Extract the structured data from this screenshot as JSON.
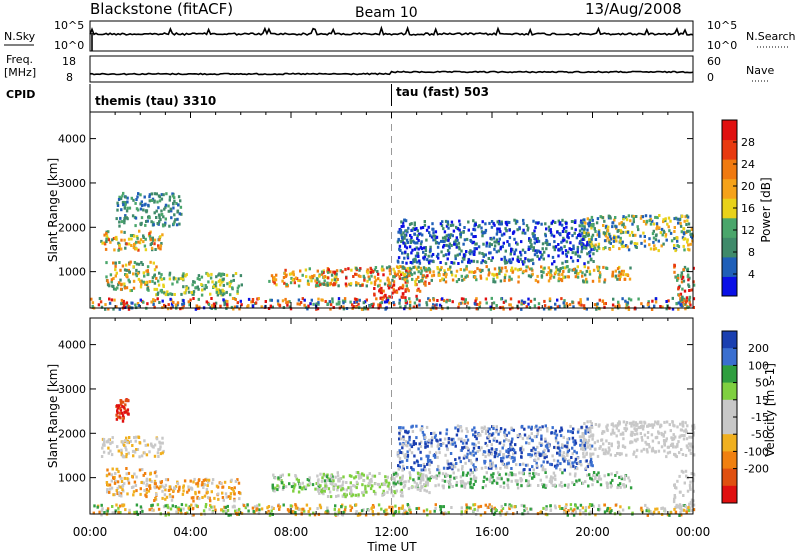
{
  "header": {
    "station": "Blackstone (fitACF)",
    "beam": "Beam 10",
    "date": "13/Aug/2008"
  },
  "top_strips": {
    "nsky_label": "N.Sky",
    "nsky_ticks": [
      "10^5",
      "10^0"
    ],
    "nsearch_label": "N.Search",
    "nsearch_ticks": [
      "10^5",
      "10^0"
    ],
    "freq_label_line1": "Freq.",
    "freq_label_line2": "[MHz]",
    "freq_ticks": [
      "18",
      "8"
    ],
    "nave_label": "Nave",
    "nave_ticks": [
      "60",
      "0"
    ],
    "cpid_label": "CPID",
    "cpid_segments": [
      {
        "label": "themis (tau) 3310",
        "start_hour": 0
      },
      {
        "label": "tau (fast) 503",
        "start_hour": 12
      }
    ]
  },
  "colors": {
    "power_scale": [
      "#0a10e6",
      "#1f5fb8",
      "#3f8a6a",
      "#4aa66b",
      "#e8d21a",
      "#f5a21a",
      "#f07a10",
      "#e83a10",
      "#e01010"
    ],
    "velocity_scale": [
      "#1a3fb0",
      "#3a6fd0",
      "#2f9e3f",
      "#7fd040",
      "#c8c8c8",
      "#c8c8c8",
      "#f0b020",
      "#f08010",
      "#e05010",
      "#e01010"
    ],
    "dashline": "#999999"
  },
  "chart_data": [
    {
      "type": "heatmap",
      "title": "Power",
      "ylabel": "Slant Range [km]",
      "xlabel": "",
      "x_range_hours": [
        0,
        24
      ],
      "ylim": [
        180,
        4600
      ],
      "y_ticks": [
        1000,
        2000,
        3000,
        4000
      ],
      "colorbar": {
        "label": "Power [dB]",
        "range": [
          0,
          32
        ],
        "tick_values": [
          4,
          8,
          12,
          16,
          20,
          24,
          28
        ],
        "tick_labels": [
          "4",
          "8",
          "12",
          "16",
          "20",
          "24",
          "28"
        ]
      },
      "regions": [
        {
          "x0": 0.4,
          "x1": 2.9,
          "y0": 1500,
          "y1": 1950,
          "levels": [
            2,
            3,
            6,
            5,
            7,
            4
          ]
        },
        {
          "x0": 0.6,
          "x1": 2.6,
          "y0": 600,
          "y1": 1250,
          "levels": [
            2,
            3,
            4,
            5,
            6,
            2
          ]
        },
        {
          "x0": 1.0,
          "x1": 3.6,
          "y0": 2050,
          "y1": 2800,
          "levels": [
            1,
            2,
            2,
            3
          ]
        },
        {
          "x0": 2.5,
          "x1": 6.0,
          "y0": 500,
          "y1": 1000,
          "levels": [
            2,
            3,
            4
          ]
        },
        {
          "x0": 7.0,
          "x1": 9.8,
          "y0": 700,
          "y1": 1100,
          "levels": [
            4,
            5,
            6,
            7,
            3
          ]
        },
        {
          "x0": 9.0,
          "x1": 13.5,
          "y0": 700,
          "y1": 1150,
          "levels": [
            2,
            3,
            4,
            5,
            6,
            7,
            8
          ]
        },
        {
          "x0": 11.2,
          "x1": 13.2,
          "y0": 420,
          "y1": 700,
          "levels": [
            6,
            7,
            8,
            8
          ]
        },
        {
          "x0": 12.0,
          "x1": 21.5,
          "y0": 800,
          "y1": 1150,
          "levels": [
            2,
            3,
            4,
            5,
            6
          ]
        },
        {
          "x0": 12.2,
          "x1": 20.0,
          "y0": 1200,
          "y1": 2200,
          "levels": [
            0,
            1,
            2
          ]
        },
        {
          "x0": 19.5,
          "x1": 24.0,
          "y0": 1500,
          "y1": 2300,
          "levels": [
            1,
            2,
            3,
            4,
            5
          ]
        },
        {
          "x0": 23.2,
          "x1": 24.0,
          "y0": 250,
          "y1": 1200,
          "levels": [
            2,
            3,
            6,
            7,
            8
          ]
        },
        {
          "x0": 0.0,
          "x1": 24.0,
          "y0": 180,
          "y1": 430,
          "levels": [
            0,
            1,
            2,
            3,
            5,
            6,
            7,
            8
          ]
        }
      ]
    },
    {
      "type": "heatmap",
      "title": "Velocity",
      "ylabel": "Slant Range [km]",
      "xlabel": "Time UT",
      "x_range_hours": [
        0,
        24
      ],
      "x_ticks": [
        "00:00",
        "04:00",
        "08:00",
        "12:00",
        "16:00",
        "20:00",
        "00:00"
      ],
      "ylim": [
        180,
        4600
      ],
      "y_ticks": [
        1000,
        2000,
        3000,
        4000
      ],
      "colorbar": {
        "label": "Velocity [m s-1]",
        "tick_labels": [
          "200",
          "100",
          "50",
          "15",
          "-15",
          "-50",
          "-100",
          "-200"
        ]
      },
      "regions": [
        {
          "x0": 0.4,
          "x1": 2.9,
          "y0": 1500,
          "y1": 1950,
          "levels": [
            4,
            5,
            6
          ]
        },
        {
          "x0": 0.6,
          "x1": 2.6,
          "y0": 600,
          "y1": 1250,
          "levels": [
            6,
            7,
            4
          ]
        },
        {
          "x0": 1.0,
          "x1": 1.5,
          "y0": 2300,
          "y1": 2800,
          "levels": [
            8,
            9
          ]
        },
        {
          "x0": 2.5,
          "x1": 6.0,
          "y0": 500,
          "y1": 1000,
          "levels": [
            4,
            6,
            7
          ]
        },
        {
          "x0": 7.0,
          "x1": 9.8,
          "y0": 700,
          "y1": 1100,
          "levels": [
            2,
            3,
            4
          ]
        },
        {
          "x0": 9.0,
          "x1": 13.5,
          "y0": 600,
          "y1": 1150,
          "levels": [
            4,
            5,
            3
          ]
        },
        {
          "x0": 12.0,
          "x1": 21.5,
          "y0": 800,
          "y1": 1150,
          "levels": [
            4,
            5,
            2
          ]
        },
        {
          "x0": 12.2,
          "x1": 20.0,
          "y0": 1200,
          "y1": 2200,
          "levels": [
            4,
            0,
            1
          ]
        },
        {
          "x0": 19.5,
          "x1": 24.0,
          "y0": 1500,
          "y1": 2300,
          "levels": [
            4,
            5
          ]
        },
        {
          "x0": 23.2,
          "x1": 24.0,
          "y0": 250,
          "y1": 1200,
          "levels": [
            4,
            5
          ]
        },
        {
          "x0": 0.0,
          "x1": 24.0,
          "y0": 180,
          "y1": 430,
          "levels": [
            6,
            7,
            4,
            3,
            2
          ]
        }
      ]
    }
  ]
}
